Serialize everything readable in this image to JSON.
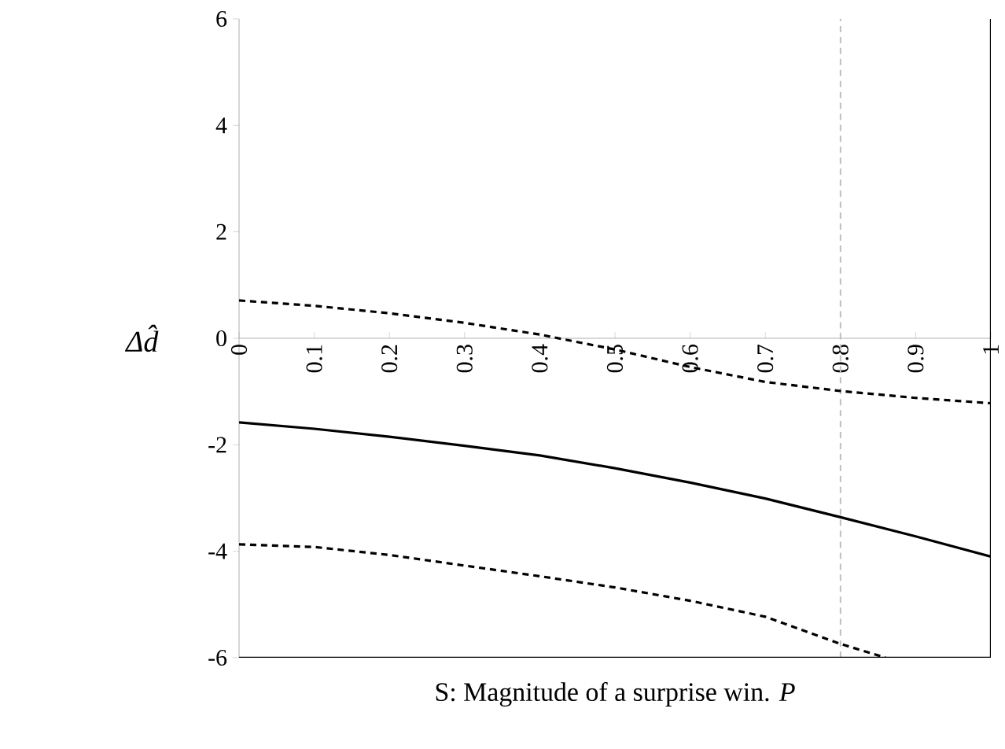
{
  "chart_data": {
    "type": "line",
    "xlabel": "S: Magnitude of a surprise win. *P*",
    "ylabel": "Δd̂",
    "xlim": [
      0,
      1
    ],
    "xticks": [
      0,
      0.1,
      0.2,
      0.3,
      0.4,
      0.5,
      0.6,
      0.7,
      0.8,
      0.9,
      1
    ],
    "ylim": [
      -6,
      6
    ],
    "yticks": [
      -6,
      -4,
      -2,
      0,
      2,
      4,
      6
    ],
    "series": [
      {
        "color": "#000000",
        "line_style": "solid",
        "x": [
          0,
          0.1,
          0.2,
          0.3,
          0.4,
          0.5,
          0.6,
          0.7,
          0.8,
          0.9,
          1
        ],
        "values": [
          -1.58,
          -1.7,
          -1.85,
          -2.02,
          -2.2,
          -2.44,
          -2.71,
          -3.01,
          -3.36,
          -3.72,
          -4.1
        ]
      },
      {
        "color": "#000000",
        "line_style": "dashed",
        "x": [
          0,
          0.1,
          0.2,
          0.3,
          0.4,
          0.5,
          0.6,
          0.7,
          0.8,
          0.9,
          1
        ],
        "values": [
          0.71,
          0.61,
          0.47,
          0.29,
          0.07,
          -0.21,
          -0.54,
          -0.82,
          -0.99,
          -1.12,
          -1.22
        ]
      },
      {
        "color": "#000000",
        "line_style": "dashed",
        "x": [
          0,
          0.1,
          0.2,
          0.3,
          0.4,
          0.5,
          0.6,
          0.7,
          0.8,
          0.86
        ],
        "values": [
          -3.87,
          -3.92,
          -4.07,
          -4.27,
          -4.47,
          -4.68,
          -4.93,
          -5.23,
          -5.74,
          -6
        ]
      }
    ],
    "ref_lines": [
      {
        "axis": "x",
        "value": 0.8,
        "color": "#bfbfbf",
        "line_style": "dashed"
      }
    ]
  }
}
